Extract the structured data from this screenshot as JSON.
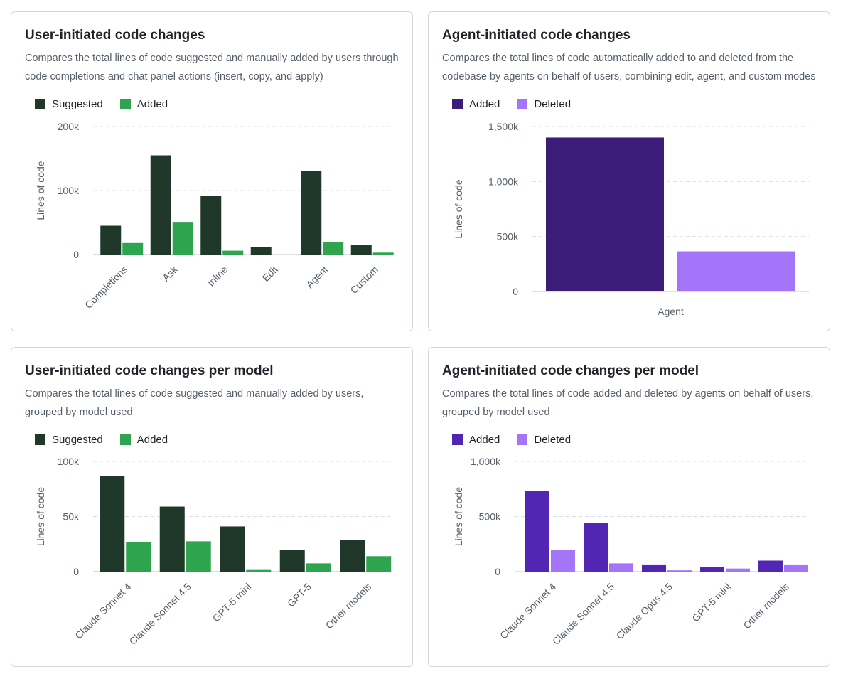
{
  "colors": {
    "suggested": "#1f3829",
    "added_green": "#2ea44f",
    "agent_added_dark": "#3b1c78",
    "agent_added": "#5226b4",
    "agent_deleted": "#a475f9",
    "grid": "#d8dee4",
    "axis": "#d0d7de",
    "tick_text": "#57606a"
  },
  "cards": [
    {
      "title": "User-initiated code changes",
      "description": "Compares the total lines of code suggested and manually added by users through code completions and chat panel actions (insert, copy, and apply)",
      "legend": [
        {
          "label": "Suggested",
          "color": "#1f3829"
        },
        {
          "label": "Added",
          "color": "#2ea44f"
        }
      ]
    },
    {
      "title": "Agent-initiated code changes",
      "description": "Compares the total lines of code automatically added to and deleted from the codebase by agents on behalf of users, combining edit, agent, and custom modes",
      "legend": [
        {
          "label": "Added",
          "color": "#3b1c78"
        },
        {
          "label": "Deleted",
          "color": "#a475f9"
        }
      ]
    },
    {
      "title": "User-initiated code changes per model",
      "description": "Compares the total lines of code suggested and manually added by users, grouped by model used",
      "legend": [
        {
          "label": "Suggested",
          "color": "#1f3829"
        },
        {
          "label": "Added",
          "color": "#2ea44f"
        }
      ]
    },
    {
      "title": "Agent-initiated code changes per model",
      "description": "Compares the total lines of code added and deleted by agents on behalf of users, grouped by model used",
      "legend": [
        {
          "label": "Added",
          "color": "#5226b4"
        },
        {
          "label": "Deleted",
          "color": "#a475f9"
        }
      ]
    }
  ],
  "chart_data": [
    {
      "type": "bar",
      "title": "User-initiated code changes",
      "ylabel": "Lines of code",
      "ylim": [
        0,
        200000
      ],
      "yticks": [
        0,
        100000,
        200000
      ],
      "ytick_labels": [
        "0",
        "100k",
        "200k"
      ],
      "grid": true,
      "legend_position": "top-left",
      "categories": [
        "Completions",
        "Ask",
        "Inline",
        "Edit",
        "Agent",
        "Custom"
      ],
      "series": [
        {
          "name": "Suggested",
          "color": "#1f3829",
          "values": [
            45000,
            155000,
            92000,
            12000,
            131000,
            15000
          ]
        },
        {
          "name": "Added",
          "color": "#2ea44f",
          "values": [
            18000,
            51000,
            6000,
            0,
            19000,
            3000
          ]
        }
      ]
    },
    {
      "type": "bar",
      "title": "Agent-initiated code changes",
      "ylabel": "Lines of code",
      "ylim": [
        0,
        1500000
      ],
      "yticks": [
        0,
        500000,
        1000000,
        1500000
      ],
      "ytick_labels": [
        "0",
        "500k",
        "1,000k",
        "1,500k"
      ],
      "grid": true,
      "legend_position": "top-left",
      "categories": [
        "Agent"
      ],
      "series": [
        {
          "name": "Added",
          "color": "#3b1c78",
          "values": [
            1400000
          ]
        },
        {
          "name": "Deleted",
          "color": "#a475f9",
          "values": [
            365000
          ]
        }
      ]
    },
    {
      "type": "bar",
      "title": "User-initiated code changes per model",
      "ylabel": "Lines of code",
      "ylim": [
        0,
        100000
      ],
      "yticks": [
        0,
        50000,
        100000
      ],
      "ytick_labels": [
        "0",
        "50k",
        "100k"
      ],
      "grid": true,
      "legend_position": "top-left",
      "categories": [
        "Claude Sonnet 4",
        "Claude Sonnet 4.5",
        "GPT-5 mini",
        "GPT-5",
        "Other models"
      ],
      "series": [
        {
          "name": "Suggested",
          "color": "#1f3829",
          "values": [
            87000,
            59000,
            41000,
            20000,
            29000
          ]
        },
        {
          "name": "Added",
          "color": "#2ea44f",
          "values": [
            26500,
            27500,
            1500,
            7500,
            14000
          ]
        }
      ]
    },
    {
      "type": "bar",
      "title": "Agent-initiated code changes per model",
      "ylabel": "Lines of code",
      "ylim": [
        0,
        1000000
      ],
      "yticks": [
        0,
        500000,
        1000000
      ],
      "ytick_labels": [
        "0",
        "500k",
        "1,000k"
      ],
      "grid": true,
      "legend_position": "top-left",
      "categories": [
        "Claude Sonnet 4",
        "Claude Sonnet 4.5",
        "Claude Opus 4.5",
        "GPT-5 mini",
        "Other models"
      ],
      "series": [
        {
          "name": "Added",
          "color": "#5226b4",
          "values": [
            735000,
            440000,
            65000,
            42000,
            100000
          ]
        },
        {
          "name": "Deleted",
          "color": "#a475f9",
          "values": [
            195000,
            75000,
            12000,
            28000,
            65000
          ]
        }
      ]
    }
  ]
}
